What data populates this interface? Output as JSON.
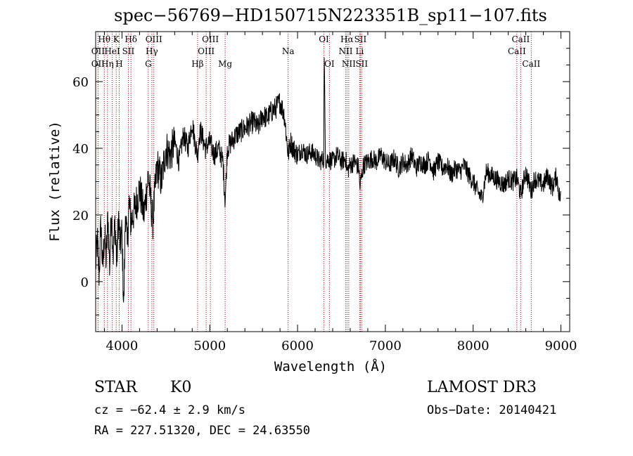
{
  "chart_data": {
    "type": "line",
    "title": "spec−56769−HD150715N223351B_sp11−107.fits",
    "xlabel": "Wavelength (Å)",
    "ylabel": "Flux (relative)",
    "xlim": [
      3700,
      9100
    ],
    "ylim": [
      -15,
      75
    ],
    "xticks": [
      4000,
      5000,
      6000,
      7000,
      8000,
      9000
    ],
    "yticks": [
      0,
      20,
      40,
      60
    ],
    "series": [
      {
        "name": "flux",
        "x": [
          3700,
          3720,
          3740,
          3760,
          3780,
          3800,
          3820,
          3840,
          3860,
          3880,
          3900,
          3920,
          3940,
          3960,
          3980,
          4000,
          4020,
          4040,
          4060,
          4080,
          4100,
          4150,
          4200,
          4250,
          4300,
          4350,
          4400,
          4450,
          4500,
          4550,
          4600,
          4650,
          4700,
          4750,
          4800,
          4830,
          4861,
          4880,
          4900,
          4950,
          5000,
          5050,
          5100,
          5150,
          5175,
          5200,
          5250,
          5300,
          5350,
          5400,
          5450,
          5500,
          5550,
          5600,
          5650,
          5700,
          5750,
          5800,
          5850,
          5893,
          5920,
          5950,
          6000,
          6050,
          6100,
          6150,
          6200,
          6250,
          6300,
          6302,
          6320,
          6350,
          6400,
          6450,
          6500,
          6550,
          6563,
          6600,
          6650,
          6700,
          6708,
          6750,
          6800,
          6850,
          6900,
          6950,
          7000,
          7050,
          7100,
          7150,
          7200,
          7250,
          7300,
          7350,
          7400,
          7450,
          7500,
          7550,
          7600,
          7650,
          7700,
          7750,
          7800,
          7850,
          7900,
          7950,
          8000,
          8050,
          8100,
          8150,
          8200,
          8250,
          8300,
          8350,
          8400,
          8450,
          8498,
          8542,
          8600,
          8662,
          8700,
          8750,
          8800,
          8850,
          8900,
          8950,
          8980,
          9000
        ],
        "values": [
          5,
          12,
          2,
          18,
          3,
          15,
          6,
          20,
          4,
          22,
          8,
          18,
          5,
          20,
          10,
          15,
          -8,
          22,
          10,
          24,
          18,
          22,
          28,
          20,
          32,
          18,
          35,
          30,
          40,
          38,
          42,
          36,
          44,
          40,
          48,
          42,
          38,
          44,
          45,
          40,
          42,
          38,
          40,
          36,
          24,
          40,
          42,
          44,
          45,
          46,
          47,
          48,
          46,
          50,
          49,
          51,
          52,
          54,
          50,
          38,
          42,
          40,
          38,
          40,
          38,
          39,
          38,
          36,
          37,
          70,
          36,
          37,
          36,
          38,
          36,
          37,
          33,
          35,
          36,
          34,
          28,
          35,
          36,
          37,
          36,
          38,
          36,
          35,
          37,
          34,
          36,
          35,
          38,
          34,
          36,
          35,
          37,
          33,
          36,
          34,
          35,
          32,
          34,
          33,
          35,
          32,
          30,
          27,
          25,
          33,
          32,
          31,
          30,
          29,
          31,
          30,
          31,
          26,
          33,
          27,
          31,
          30,
          29,
          32,
          28,
          32,
          26,
          25
        ]
      }
    ],
    "lines": [
      {
        "x": 3798,
        "label": "Hθ",
        "row": 0
      },
      {
        "x": 3727,
        "label": "OII",
        "row": 1
      },
      {
        "x": 3727,
        "label": "OII",
        "row": 2
      },
      {
        "x": 3835,
        "label": "Hη",
        "row": 2
      },
      {
        "x": 3889,
        "label": "HeI",
        "row": 1
      },
      {
        "x": 3934,
        "label": "K",
        "row": 0
      },
      {
        "x": 3968,
        "label": "H",
        "row": 2
      },
      {
        "x": 4072,
        "label": "SII",
        "row": 1
      },
      {
        "x": 4102,
        "label": "Hδ",
        "row": 0
      },
      {
        "x": 4300,
        "label": "G",
        "row": 2
      },
      {
        "x": 4340,
        "label": "Hγ",
        "row": 1
      },
      {
        "x": 4363,
        "label": "OIII",
        "row": 0
      },
      {
        "x": 4861,
        "label": "Hβ",
        "row": 2
      },
      {
        "x": 4959,
        "label": "OIII",
        "row": 1
      },
      {
        "x": 5007,
        "label": "OIII",
        "row": 0
      },
      {
        "x": 5175,
        "label": "Mg",
        "row": 2
      },
      {
        "x": 5893,
        "label": "Na",
        "row": 1
      },
      {
        "x": 6300,
        "label": "OI",
        "row": 0
      },
      {
        "x": 6363,
        "label": "OI",
        "row": 2
      },
      {
        "x": 6548,
        "label": "NII",
        "row": 1
      },
      {
        "x": 6563,
        "label": "Hα",
        "row": 0
      },
      {
        "x": 6583,
        "label": "NII",
        "row": 2
      },
      {
        "x": 6708,
        "label": "Li",
        "row": 1
      },
      {
        "x": 6716,
        "label": "SII",
        "row": 0
      },
      {
        "x": 6731,
        "label": "SII",
        "row": 2
      },
      {
        "x": 8498,
        "label": "CaII",
        "row": 1
      },
      {
        "x": 8542,
        "label": "CaII",
        "row": 0
      },
      {
        "x": 8662,
        "label": "CaII",
        "row": 2
      }
    ]
  },
  "info": {
    "class": "STAR",
    "subclass": "K0",
    "survey": "LAMOST DR3",
    "cz": "cz = −62.4 ± 2.9 km/s",
    "obs_date": "Obs−Date: 20140421",
    "radec": "RA = 227.51320, DEC =  24.63550"
  }
}
